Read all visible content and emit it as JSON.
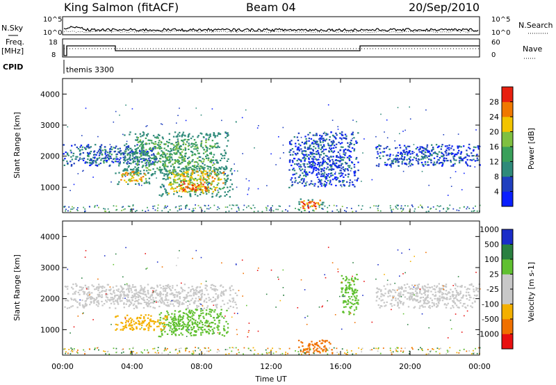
{
  "header": {
    "station": "King Salmon (fitACF)",
    "beam": "Beam 04",
    "date": "20/Sep/2010"
  },
  "strips": {
    "nsky_label": "N.Sky",
    "nsky_ticks": [
      "10^5",
      "10^0"
    ],
    "nsearch_label": "N.Search",
    "nsearch_ticks": [
      "10^5",
      "10^0"
    ],
    "freq_label_line1": "Freq.",
    "freq_label_line2": "[MHz]",
    "freq_ticks": [
      "18",
      "8"
    ],
    "nave_label": "Nave",
    "nave_ticks": [
      "60",
      "0"
    ],
    "cpid_label": "CPID",
    "cpid_name": "themis 3300"
  },
  "time_axis": {
    "label": "Time UT",
    "ticks": [
      "00:00",
      "04:00",
      "08:00",
      "12:00",
      "16:00",
      "20:00",
      "00:00"
    ]
  },
  "colors": {
    "power": [
      "#0a1fff",
      "#1f3fbf",
      "#2f8a7a",
      "#3aa05a",
      "#7fc040",
      "#f2c400",
      "#f07800",
      "#e82010"
    ],
    "velocity": [
      "#e81010",
      "#f07000",
      "#f4b000",
      "#c8c8c8",
      "#c8c8c8",
      "#60c030",
      "#2a8040",
      "#1a2cc8"
    ]
  },
  "chart_data": [
    {
      "type": "heatmap",
      "ylabel": "Slant Range [km]",
      "xlabel": "",
      "ylim": [
        180,
        4500
      ],
      "yticks": [
        "1000",
        "2000",
        "3000",
        "4000"
      ],
      "xlim_hours": [
        0,
        24
      ],
      "colorbar": {
        "label": "Power [dB]",
        "ticks": [
          "4",
          "8",
          "12",
          "16",
          "20",
          "24",
          "28"
        ],
        "range": [
          0,
          32
        ]
      },
      "regions": [
        {
          "t0": 0.0,
          "t1": 5.5,
          "r0": 1700,
          "r1": 2400,
          "value": 8
        },
        {
          "t0": 3.5,
          "t1": 9.5,
          "r0": 1400,
          "r1": 2800,
          "value": 14
        },
        {
          "t0": 3.0,
          "t1": 5.0,
          "r0": 1100,
          "r1": 1600,
          "value": 22
        },
        {
          "t0": 5.5,
          "t1": 9.8,
          "r0": 700,
          "r1": 1700,
          "value": 20
        },
        {
          "t0": 6.5,
          "t1": 8.5,
          "r0": 850,
          "r1": 1250,
          "value": 28
        },
        {
          "t0": 13.5,
          "t1": 15.0,
          "r0": 250,
          "r1": 650,
          "value": 26
        },
        {
          "t0": 13.0,
          "t1": 17.0,
          "r0": 1000,
          "r1": 2800,
          "value": 6
        },
        {
          "t0": 18.0,
          "t1": 24.0,
          "r0": 1700,
          "r1": 2400,
          "value": 6
        }
      ]
    },
    {
      "type": "heatmap",
      "ylabel": "Slant Range [km]",
      "xlabel": "Time UT",
      "ylim": [
        180,
        4500
      ],
      "yticks": [
        "1000",
        "2000",
        "3000",
        "4000"
      ],
      "xlim_hours": [
        0,
        24
      ],
      "colorbar": {
        "label": "Velocity [m s-1]",
        "ticks": [
          "-1000",
          "-500",
          "-100",
          "-25",
          "25",
          "100",
          "500",
          "1000"
        ]
      },
      "regions": [
        {
          "t0": 0.0,
          "t1": 10.0,
          "r0": 1700,
          "r1": 2500,
          "value": 0
        },
        {
          "t0": 18.0,
          "t1": 24.0,
          "r0": 1700,
          "r1": 2500,
          "value": 0
        },
        {
          "t0": 5.5,
          "t1": 9.5,
          "r0": 800,
          "r1": 1700,
          "value": 60
        },
        {
          "t0": 3.0,
          "t1": 6.0,
          "r0": 1000,
          "r1": 1500,
          "value": -60
        },
        {
          "t0": 13.5,
          "t1": 15.5,
          "r0": 250,
          "r1": 700,
          "value": -300
        },
        {
          "t0": 16.0,
          "t1": 17.0,
          "r0": 1500,
          "r1": 2800,
          "value": 80
        }
      ]
    }
  ]
}
